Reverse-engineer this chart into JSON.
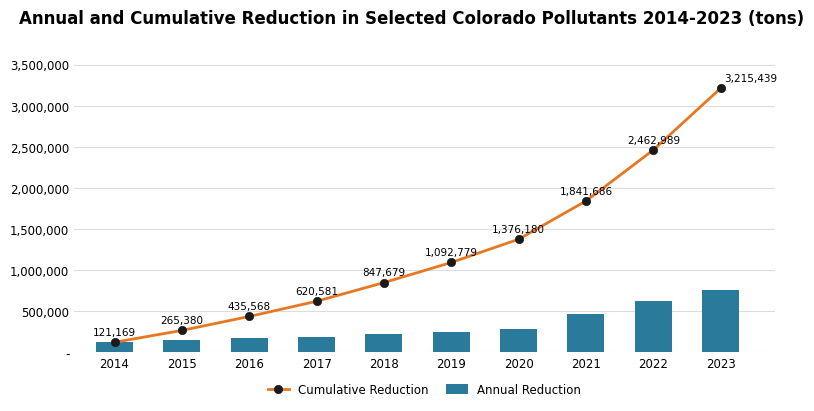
{
  "title": "Annual and Cumulative Reduction in Selected Colorado Pollutants 2014-2023 (tons)",
  "years": [
    2014,
    2015,
    2016,
    2017,
    2018,
    2019,
    2020,
    2021,
    2022,
    2023
  ],
  "cumulative_values": [
    121169,
    265380,
    435568,
    620581,
    847679,
    1092779,
    1376180,
    1841686,
    2462989,
    3215439
  ],
  "annual_bar_values": [
    121169,
    144211,
    170188,
    185013,
    227098,
    245100,
    283401,
    465506,
    621303,
    752450
  ],
  "bar_color": "#2a7b9b",
  "line_color": "#e87722",
  "marker_color": "#1a1a1a",
  "background_color": "#ffffff",
  "grid_color": "#dddddd",
  "ylim": [
    0,
    3700000
  ],
  "yticks": [
    0,
    500000,
    1000000,
    1500000,
    2000000,
    2500000,
    3000000,
    3500000
  ],
  "legend_annual": "Annual Reduction",
  "legend_cumulative": "Cumulative Reduction",
  "cumulative_labels": [
    "121,169",
    "265,380",
    "435,568",
    "620,581",
    "847,679",
    "1,092,779",
    "1,376,180",
    "1,841,686",
    "2,462,989",
    "3,215,439"
  ],
  "label_offsets_x": [
    0,
    0,
    0,
    0,
    0,
    0,
    0,
    0,
    0,
    0.05
  ],
  "label_offsets_y": [
    60000,
    60000,
    60000,
    60000,
    60000,
    60000,
    60000,
    60000,
    60000,
    60000
  ],
  "label_ha": [
    "center",
    "center",
    "center",
    "center",
    "center",
    "center",
    "center",
    "center",
    "center",
    "left"
  ],
  "title_fontsize": 12,
  "label_fontsize": 7.5,
  "tick_fontsize": 8.5,
  "legend_fontsize": 8.5
}
